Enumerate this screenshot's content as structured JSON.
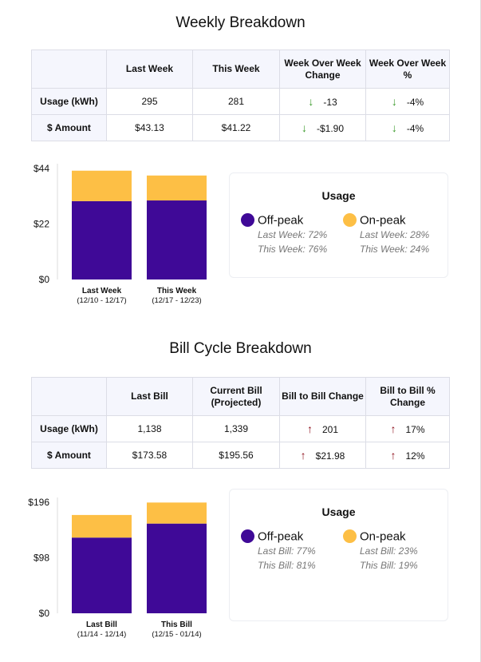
{
  "colors": {
    "offpeak": "#3f0997",
    "onpeak": "#fdbf45"
  },
  "weekly": {
    "title": "Weekly Breakdown",
    "headers": [
      "",
      "Last Week",
      "This Week",
      "Week Over Week Change",
      "Week Over Week %"
    ],
    "rows": [
      {
        "label": "Usage (kWh)",
        "a": "295",
        "b": "281",
        "change": "-13",
        "pct": "-4%",
        "dir": "down"
      },
      {
        "label": "$ Amount",
        "a": "$43.13",
        "b": "$41.22",
        "change": "-$1.90",
        "pct": "-4%",
        "dir": "down"
      }
    ],
    "legend": {
      "title": "Usage",
      "off": "Off-peak",
      "on": "On-peak",
      "off1": "Last Week: 72%",
      "off2": "This Week: 76%",
      "on1": "Last Week: 28%",
      "on2": "This Week: 24%"
    }
  },
  "bill": {
    "title": "Bill Cycle Breakdown",
    "headers": [
      "",
      "Last Bill",
      "Current Bill (Projected)",
      "Bill to Bill Change",
      "Bill to Bill % Change"
    ],
    "rows": [
      {
        "label": "Usage (kWh)",
        "a": "1,138",
        "b": "1,339",
        "change": "201",
        "pct": "17%",
        "dir": "up"
      },
      {
        "label": "$ Amount",
        "a": "$173.58",
        "b": "$195.56",
        "change": "$21.98",
        "pct": "12%",
        "dir": "up"
      }
    ],
    "legend": {
      "title": "Usage",
      "off": "Off-peak",
      "on": "On-peak",
      "off1": "Last Bill: 77%",
      "off2": "This Bill: 81%",
      "on1": "Last Bill: 23%",
      "on2": "This Bill: 19%"
    }
  },
  "chart_data": [
    {
      "type": "bar",
      "stacked": true,
      "ylim": [
        0,
        44
      ],
      "yticks": [
        "$0",
        "$22",
        "$44"
      ],
      "ytickvals": [
        0,
        22,
        44
      ],
      "categories": [
        "Last Week",
        "This Week"
      ],
      "subcategories": [
        "(12/10 - 12/17)",
        "(12/17 - 12/23)"
      ],
      "series": [
        {
          "name": "Off-peak",
          "values": [
            31.05,
            31.33
          ]
        },
        {
          "name": "On-peak",
          "values": [
            12.08,
            9.89
          ]
        }
      ]
    },
    {
      "type": "bar",
      "stacked": true,
      "ylim": [
        0,
        196
      ],
      "yticks": [
        "$0",
        "$98",
        "$196"
      ],
      "ytickvals": [
        0,
        98,
        196
      ],
      "categories": [
        "Last Bill",
        "This Bill"
      ],
      "subcategories": [
        "(11/14 - 12/14)",
        "(12/15 - 01/14)"
      ],
      "series": [
        {
          "name": "Off-peak",
          "values": [
            133.66,
            158.4
          ]
        },
        {
          "name": "On-peak",
          "values": [
            39.92,
            37.16
          ]
        }
      ]
    }
  ]
}
